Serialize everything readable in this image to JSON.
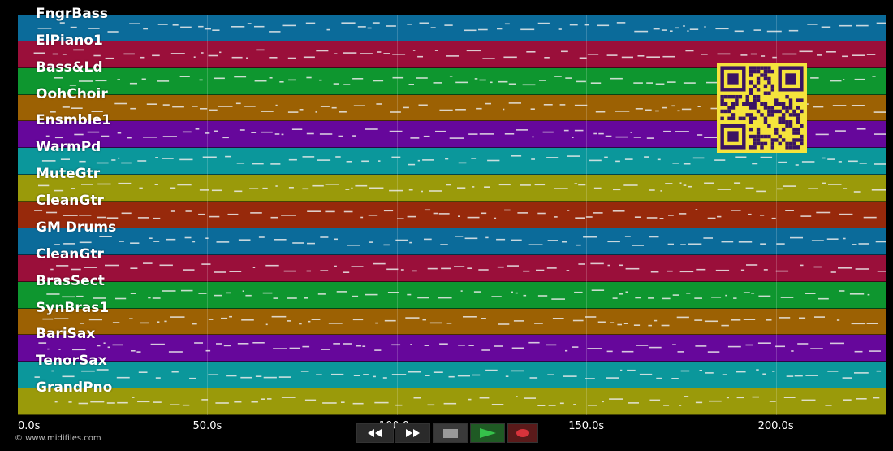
{
  "tracks": [
    {
      "name": "FngrBass",
      "color": "#0b6b9a"
    },
    {
      "name": "ElPiano1",
      "color": "#9a0f3a"
    },
    {
      "name": "Bass&Ld",
      "color": "#0e962f"
    },
    {
      "name": "OohChoir",
      "color": "#9c6103"
    },
    {
      "name": "Ensmble1",
      "color": "#66079b"
    },
    {
      "name": "WarmPd",
      "color": "#0b979b"
    },
    {
      "name": "MuteGtr",
      "color": "#9a9a0a"
    },
    {
      "name": "CleanGtr",
      "color": "#97290b"
    },
    {
      "name": "GM Drums",
      "color": "#0b6b9a"
    },
    {
      "name": "CleanGtr",
      "color": "#9a0f3a"
    },
    {
      "name": "BrasSect",
      "color": "#0e962f"
    },
    {
      "name": "SynBras1",
      "color": "#9c6103"
    },
    {
      "name": "BariSax",
      "color": "#66079b"
    },
    {
      "name": "TenorSax",
      "color": "#0b979b"
    },
    {
      "name": "GrandPno",
      "color": "#9a9a0a"
    }
  ],
  "timeline": {
    "ticks": [
      "0.0s",
      "50.0s",
      "100.0s",
      "150.0s",
      "200.0s"
    ],
    "tick_seconds": [
      0,
      50,
      100,
      150,
      200
    ],
    "max_seconds": 229
  },
  "copyright": "© www.midifiles.com",
  "transport": {
    "rewind_icon": "rewind-icon",
    "forward_icon": "fast-forward-icon",
    "stop_icon": "stop-icon",
    "play_icon": "play-icon",
    "record_icon": "record-icon"
  },
  "qr_icon": "qr-code-icon"
}
